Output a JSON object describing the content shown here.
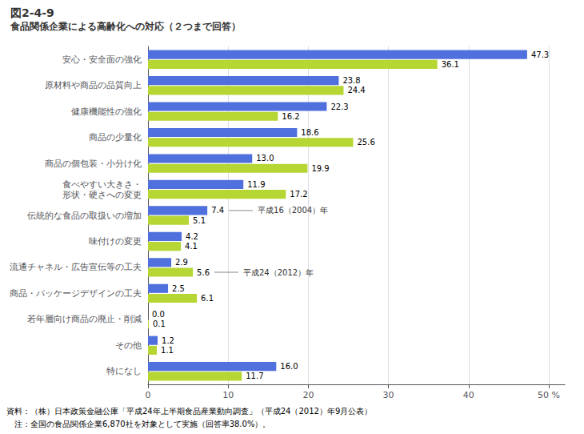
{
  "chart_data": {
    "type": "bar",
    "orientation": "horizontal",
    "title": "図2-4-9",
    "subtitle": "食品関係企業による高齢化への対応（２つまで回答）",
    "categories": [
      "安心・安全面の強化",
      "原材料や商品の品質向上",
      "健康機能性の強化",
      "商品の少量化",
      "商品の個包装・小分け化",
      "食べやすい大きさ・\n形状・硬さへの変更",
      "伝統的な食品の取扱いの増加",
      "味付けの変更",
      "流通チャネル・広告宣伝等の工夫",
      "商品・パッケージデザインの工夫",
      "若年層向け商品の廃止・削減",
      "その他",
      "特になし"
    ],
    "series": [
      {
        "name": "平成16（2004）年",
        "values": [
          47.3,
          23.8,
          22.3,
          18.6,
          13.0,
          11.9,
          7.4,
          4.2,
          2.9,
          2.5,
          0.0,
          1.2,
          16.0
        ],
        "value_labels": [
          "47.3",
          "23.8",
          "22.3",
          "18.6",
          "13.0",
          "11.9",
          "7.4",
          "4.2",
          "2.9",
          "2.5",
          "0.0",
          "1.2",
          "16.0"
        ]
      },
      {
        "name": "平成24（2012）年",
        "values": [
          36.1,
          24.4,
          16.2,
          25.6,
          19.9,
          17.2,
          5.1,
          4.1,
          5.6,
          6.1,
          0.1,
          1.1,
          11.7
        ],
        "value_labels": [
          "36.1",
          "24.4",
          "16.2",
          "25.6",
          "19.9",
          "17.2",
          "5.1",
          "4.1",
          "5.6",
          "6.1",
          "0.1",
          "1.1",
          "11.7"
        ]
      }
    ],
    "xlim": [
      0,
      52
    ],
    "xticks": [
      0,
      10,
      20,
      30,
      40,
      {
        "value": 50,
        "label": "50 %"
      }
    ],
    "grid": true,
    "data_labels": true,
    "annotations": [
      {
        "text": "平成16（2004）年",
        "series": "平成16（2004）年",
        "category": "伝統的な食品の取扱いの増加"
      },
      {
        "text": "平成24（2012）年",
        "series": "平成24（2012）年",
        "category": "流通チャネル・広告宣伝等の工夫"
      },
      {
        "text": "資料：（株）日本政策金融公庫「平成24年上半期食品産業動向調査」（平成24（2012）年9月公表）"
      },
      {
        "text": "　注：全国の食品関係企業6,870社を対象として実施（回答率38.0%）。"
      }
    ]
  }
}
